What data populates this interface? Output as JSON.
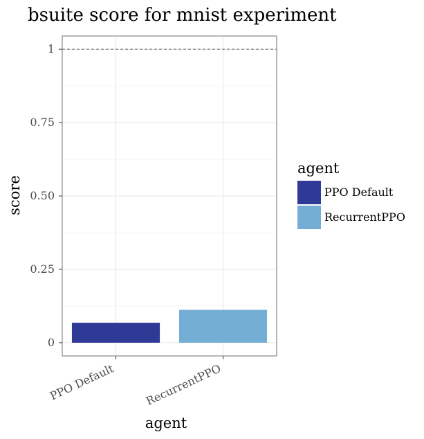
{
  "chart_data": {
    "type": "bar",
    "title": "bsuite score for mnist experiment",
    "xlabel": "agent",
    "ylabel": "score",
    "categories": [
      "PPO Default",
      "RecurrentPPO"
    ],
    "values": [
      0.068,
      0.112
    ],
    "colors": [
      "#2e3a96",
      "#74aed4"
    ],
    "ylim": [
      -0.045,
      1.045
    ],
    "yticks": [
      0,
      0.25,
      0.5,
      0.75,
      1
    ],
    "ytick_labels": [
      "0",
      "0.25",
      "0.50",
      "0.75",
      "1"
    ],
    "reference_line": 1,
    "grid": true,
    "legend": {
      "title": "agent",
      "placement": "right",
      "entries": [
        "PPO Default",
        "RecurrentPPO"
      ]
    }
  }
}
